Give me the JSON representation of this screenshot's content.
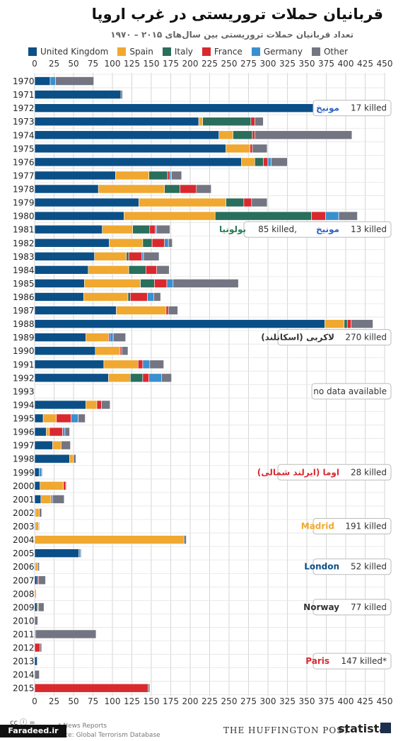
{
  "title": "قربانیان حملات تروریستی در  غرب اروپا",
  "subtitle": "تعداد قربانیان حملات تروریستی بین سال‌های ۲۰۱۵ – ۱۹۷۰",
  "colors": {
    "United Kingdom": "#0b4f87",
    "Spain": "#f0a830",
    "Italy": "#2a6e5c",
    "France": "#d9292f",
    "Germany": "#3a8fcf",
    "Other": "#737582"
  },
  "chart_data": {
    "type": "bar",
    "orientation": "horizontal",
    "stacked": true,
    "xlim": [
      0,
      450
    ],
    "x_ticks": [
      "0",
      "25",
      "50",
      "75",
      "100",
      "125",
      "150",
      "175",
      "200",
      "225",
      "250",
      "275",
      "300",
      "325",
      "350",
      "375",
      "400",
      "425",
      "450"
    ],
    "grid": true,
    "legend_position": "top",
    "categories": [
      "1970",
      "1971",
      "1972",
      "1973",
      "1974",
      "1975",
      "1976",
      "1977",
      "1978",
      "1979",
      "1980",
      "1981",
      "1982",
      "1983",
      "1984",
      "1985",
      "1986",
      "1987",
      "1988",
      "1989",
      "1990",
      "1991",
      "1992",
      "1993",
      "1994",
      "1995",
      "1996",
      "1997",
      "1998",
      "1999",
      "2000",
      "2001",
      "2002",
      "2003",
      "2004",
      "2005",
      "2006",
      "2007",
      "2008",
      "2009",
      "2010",
      "2011",
      "2012",
      "2013",
      "2014",
      "2015"
    ],
    "series": [
      {
        "name": "United Kingdom",
        "values": [
          20,
          111,
          370,
          211,
          237,
          246,
          266,
          104,
          82,
          134,
          115,
          87,
          96,
          77,
          69,
          64,
          63,
          105,
          373,
          66,
          78,
          89,
          95,
          0,
          66,
          11,
          15,
          23,
          45,
          6,
          7,
          8,
          1,
          1,
          0,
          57,
          1,
          3,
          0,
          3,
          0,
          1,
          0,
          3,
          0,
          0
        ]
      },
      {
        "name": "Spain",
        "values": [
          0,
          0,
          3,
          5,
          18,
          31,
          17,
          43,
          85,
          112,
          117,
          39,
          43,
          41,
          52,
          72,
          57,
          64,
          25,
          29,
          32,
          44,
          28,
          0,
          14,
          17,
          4,
          11,
          5,
          0,
          30,
          13,
          5,
          4,
          192,
          0,
          3,
          0,
          2,
          2,
          0,
          0,
          0,
          0,
          0,
          0
        ]
      },
      {
        "name": "Italy",
        "values": [
          0,
          0,
          0,
          62,
          25,
          0,
          11,
          24,
          20,
          23,
          124,
          22,
          12,
          3,
          22,
          18,
          3,
          0,
          4,
          0,
          0,
          0,
          16,
          0,
          0,
          0,
          0,
          0,
          0,
          0,
          0,
          0,
          0,
          0,
          0,
          0,
          0,
          0,
          0,
          0,
          0,
          0,
          0,
          0,
          0,
          0
        ]
      },
      {
        "name": "France",
        "values": [
          0,
          0,
          0,
          5,
          3,
          3,
          6,
          3,
          21,
          10,
          18,
          7,
          16,
          17,
          14,
          16,
          22,
          3,
          5,
          2,
          2,
          6,
          8,
          0,
          6,
          19,
          17,
          0,
          0,
          0,
          3,
          0,
          0,
          0,
          0,
          0,
          0,
          2,
          0,
          0,
          0,
          0,
          7,
          0,
          0,
          146
        ]
      },
      {
        "name": "Germany",
        "values": [
          7,
          0,
          22,
          0,
          0,
          0,
          4,
          2,
          0,
          0,
          17,
          2,
          5,
          2,
          0,
          8,
          8,
          0,
          0,
          4,
          0,
          9,
          16,
          0,
          0,
          9,
          3,
          0,
          0,
          3,
          0,
          2,
          0,
          0,
          0,
          2,
          0,
          0,
          0,
          0,
          0,
          0,
          0,
          0,
          0,
          0
        ]
      },
      {
        "name": "Other",
        "values": [
          49,
          2,
          10,
          11,
          125,
          19,
          21,
          13,
          19,
          20,
          24,
          17,
          5,
          20,
          16,
          84,
          9,
          12,
          28,
          16,
          8,
          18,
          13,
          0,
          11,
          9,
          6,
          12,
          3,
          1,
          1,
          15,
          3,
          1,
          3,
          1,
          2,
          9,
          0,
          7,
          4,
          78,
          2,
          1,
          6,
          2
        ]
      }
    ],
    "annotations": [
      {
        "year": "1972",
        "name": "مونیخ",
        "text": "17 killed",
        "color": "#2f63c4"
      },
      {
        "year": "1981",
        "name": "بولونیا",
        "text": "85 killed,",
        "name2": "مونیخ",
        "text2": "13 killed",
        "color": "#2a7a58",
        "color2": "#2f63c4"
      },
      {
        "year": "1989",
        "name": "لاکربی (اسکاتلند)",
        "text": "270 killed",
        "color": "#333333"
      },
      {
        "year": "1993",
        "name": "",
        "text": "no data available",
        "color": "#333333"
      },
      {
        "year": "1999",
        "name": "اوما  (ایرلند شمالی)",
        "text": "28 killed",
        "color": "#d9292f"
      },
      {
        "year": "2003",
        "name": "Madrid",
        "text": "191 killed",
        "color": "#f0a830"
      },
      {
        "year": "2006",
        "name": "London",
        "text": "52 killed",
        "color": "#0b4f87"
      },
      {
        "year": "2009",
        "name": "Norway",
        "text": "77 killed",
        "color": "#333333"
      },
      {
        "year": "2013",
        "name": "Paris",
        "text": "147 killed*",
        "color": "#d9292f"
      }
    ]
  },
  "footer": {
    "cc": "cc ⓘ =",
    "note": "* News Reports",
    "source": "urce: Global Terrorism Database",
    "huffington": "THE HUFFINGTON POST",
    "statista": "statista",
    "brand": "Faradeed.ir"
  }
}
